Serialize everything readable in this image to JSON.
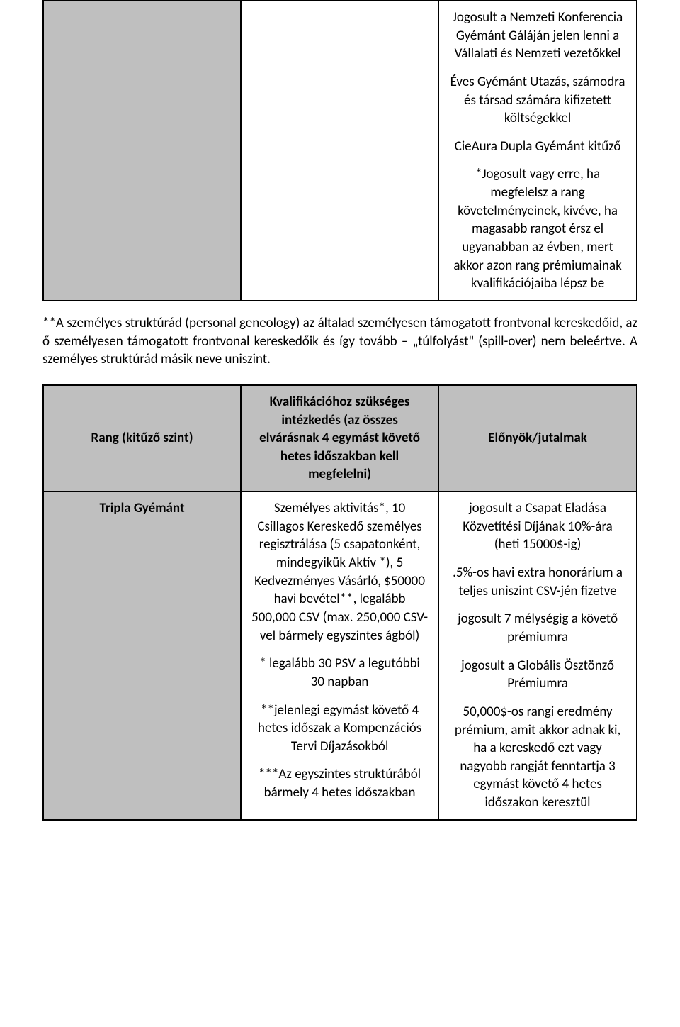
{
  "colors": {
    "page_bg": "#ffffff",
    "text": "#000000",
    "cell_shade": "#bfbfbf",
    "border": "#000000"
  },
  "typography": {
    "font_family": "Calibri, Arial, sans-serif",
    "body_fontsize_pt": 14,
    "line_height": 1.35
  },
  "top_table": {
    "right_cell": {
      "p1": "Jogosult a Nemzeti Konferencia Gyémánt Gáláján jelen lenni a Vállalati és Nemzeti vezetőkkel",
      "p2": "Éves Gyémánt Utazás, számodra és társad számára kifizetett költségekkel",
      "p3": "CieAura Dupla Gyémánt kitűző",
      "p4": "*Jogosult vagy erre, ha megfelelsz a rang követelményeinek, kivéve, ha magasabb rangot érsz el ugyanabban az évben, mert akkor azon rang prémiumainak kvalifikációjaiba lépsz be"
    }
  },
  "interstitial": "**A személyes struktúrád (personal geneology) az általad személyesen támogatott frontvonal kereskedőid, az ő személyesen támogatott frontvonal kereskedőik és így tovább – „túlfolyást\" (spill-over) nem beleértve. A személyes struktúrád másik neve uniszint.",
  "main_table": {
    "header": {
      "col1": "Rang (kitűző szint)",
      "col2": "Kvalifikációhoz szükséges intézkedés (az összes elvárásnak 4 egymást követő hetes időszakban kell megfelelni)",
      "col3": "Előnyök/jutalmak"
    },
    "row1": {
      "col1": "Tripla Gyémánt",
      "col2": {
        "p1": "Személyes aktivitás*, 10 Csillagos Kereskedő személyes regisztrálása (5 csapatonként, mindegyikük Aktív *), 5 Kedvezményes Vásárló, $50000 havi bevétel**, legalább 500,000 CSV (max. 250,000 CSV-vel bármely egyszintes ágból)",
        "p2": "* legalább 30 PSV a legutóbbi 30 napban",
        "p3": "**jelenlegi egymást követő 4 hetes időszak a Kompenzációs Tervi Díjazásokból",
        "p4": "***Az egyszintes struktúrából bármely 4 hetes időszakban"
      },
      "col3": {
        "p1": "jogosult a Csapat Eladása Közvetítési Díjának 10%-ára (heti 15000$-ig)",
        "p2": ".5%-os havi extra honorárium a teljes uniszint CSV-jén fizetve",
        "p3": "jogosult 7 mélységig a követő prémiumra",
        "p4": "jogosult a Globális Ösztönző Prémiumra",
        "p5": "50,000$-os rangi eredmény prémium, amit akkor adnak ki, ha a kereskedő ezt vagy nagyobb rangját fenntartja 3 egymást követő 4 hetes időszakon keresztül"
      }
    }
  }
}
